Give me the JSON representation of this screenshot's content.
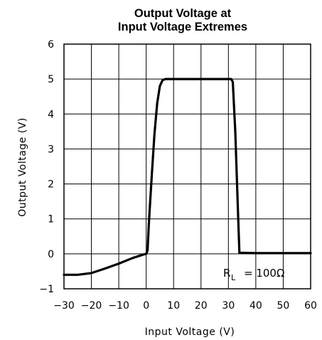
{
  "chart_data": {
    "type": "line",
    "title_lines": [
      "Output Voltage at",
      "Input Voltage Extremes"
    ],
    "xlabel": "Input Voltage (V)",
    "ylabel": "Output Voltage (V)",
    "xlim": [
      -30,
      60
    ],
    "ylim": [
      -1,
      6
    ],
    "x_ticks": [
      -30,
      -20,
      -10,
      0,
      10,
      20,
      30,
      40,
      50,
      60
    ],
    "y_ticks": [
      -1,
      0,
      1,
      2,
      3,
      4,
      5,
      6
    ],
    "grid": true,
    "annotation": {
      "symbol": "R",
      "subscript": "L",
      "value_text": "= 100Ω"
    },
    "series": [
      {
        "x": [
          -30,
          -25,
          -20,
          -15,
          -10,
          -5,
          -1,
          0,
          0.5,
          1,
          2,
          3,
          4,
          5,
          6,
          7,
          10,
          15,
          20,
          25,
          31,
          31.6,
          32.5,
          33.5,
          34,
          40,
          50,
          60
        ],
        "y": [
          -0.6,
          -0.6,
          -0.55,
          -0.42,
          -0.28,
          -0.12,
          -0.02,
          0,
          0.1,
          0.9,
          2.2,
          3.4,
          4.3,
          4.8,
          4.97,
          5,
          5,
          5,
          5,
          5,
          5,
          4.92,
          3.5,
          1.2,
          0.03,
          0.02,
          0.02,
          0.02
        ]
      }
    ]
  }
}
